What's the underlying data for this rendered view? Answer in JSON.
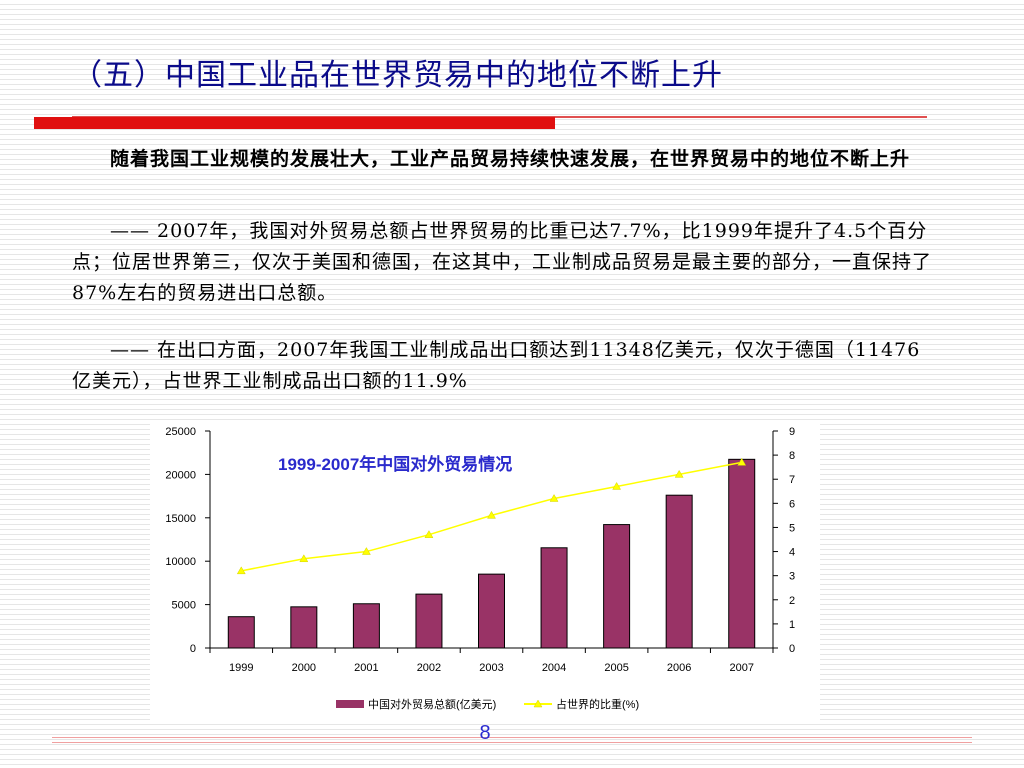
{
  "slide": {
    "title": "（五）中国工业品在世界贸易中的地位不断上升",
    "subtitle": "随着我国工业规模的发展壮大，工业产品贸易持续快速发展，在世界贸易中的地位不断上升",
    "paragraphs": [
      "—— 2007年，我国对外贸易总额占世界贸易的比重已达7.7%，比1999年提升了4.5个百分点；位居世界第三，仅次于美国和德国，在这其中，工业制成品贸易是最主要的部分，一直保持了87%左右的贸易进出口总额。",
      "—— 在出口方面，2007年我国工业制成品出口额达到11348亿美元，仅次于德国（11476亿美元），占世界工业制成品出口额的11.9%"
    ],
    "page_number": "8",
    "accent_color": "#e01010",
    "title_color": "#0b0b8a"
  },
  "chart_data": {
    "type": "bar",
    "title": "1999-2007年中国对外贸易情况",
    "categories": [
      "1999",
      "2000",
      "2001",
      "2002",
      "2003",
      "2004",
      "2005",
      "2006",
      "2007"
    ],
    "series": [
      {
        "name": "中国对外贸易总额(亿美元)",
        "type": "bar",
        "axis": "left",
        "color": "#993366",
        "values": [
          3607,
          4743,
          5097,
          6208,
          8510,
          11546,
          14219,
          17604,
          21737
        ]
      },
      {
        "name": "占世界的比重(%)",
        "type": "line",
        "axis": "right",
        "color": "#ffff00",
        "marker": "triangle",
        "values": [
          3.2,
          3.7,
          4.0,
          4.7,
          5.5,
          6.2,
          6.7,
          7.2,
          7.7
        ]
      }
    ],
    "y_left": {
      "min": 0,
      "max": 25000,
      "ticks": [
        0,
        5000,
        10000,
        15000,
        20000,
        25000
      ]
    },
    "y_right": {
      "min": 0,
      "max": 9,
      "ticks": [
        0,
        1,
        2,
        3,
        4,
        5,
        6,
        7,
        8,
        9
      ]
    },
    "legend_position": "bottom",
    "grid": false
  }
}
